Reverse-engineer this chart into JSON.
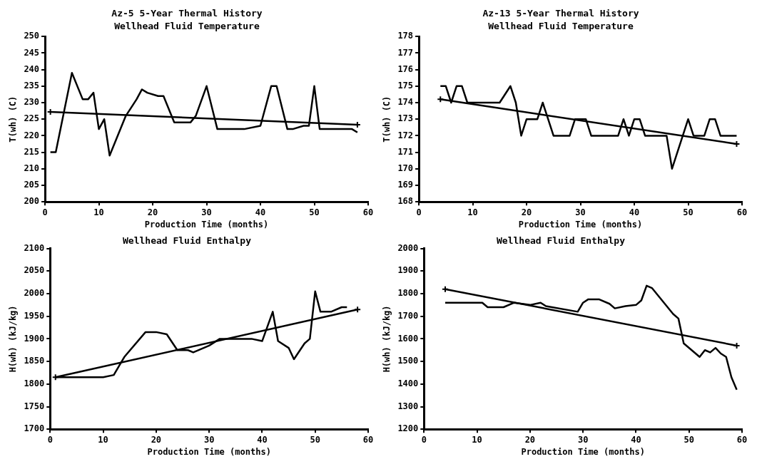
{
  "chart_data": [
    {
      "type": "line",
      "title": "Az-5 5-Year Thermal History",
      "subtitle": "Wellhead Fluid Temperature",
      "xlabel": "Production Time (months)",
      "ylabel": "T(wh) (C)",
      "xlim": [
        0,
        60
      ],
      "xticks": [
        0,
        10,
        20,
        30,
        40,
        50,
        60
      ],
      "ylim": [
        200,
        250
      ],
      "yticks": [
        200,
        205,
        210,
        215,
        220,
        225,
        230,
        235,
        240,
        245,
        250
      ],
      "grid": false,
      "legend": false,
      "series": [
        {
          "color": "#000000",
          "marker": "none",
          "x": [
            1,
            2,
            5,
            7,
            8,
            9,
            10,
            11,
            12,
            15,
            17,
            18,
            19,
            21,
            22,
            24,
            27,
            28,
            30,
            32,
            37,
            40,
            42,
            43,
            45,
            46,
            48,
            49,
            50,
            51,
            57,
            58
          ],
          "values": [
            215,
            215,
            239,
            231,
            231,
            233,
            222,
            225,
            214,
            226,
            231,
            234,
            233,
            232,
            232,
            224,
            224,
            226,
            235,
            222,
            222,
            223,
            235,
            235,
            222,
            222,
            223,
            223,
            235,
            222,
            222,
            221
          ]
        },
        {
          "color": "#000000",
          "marker": "cross",
          "x": [
            1,
            58
          ],
          "values": [
            227.2,
            223.3
          ]
        }
      ]
    },
    {
      "type": "line",
      "title": "Az-13 5-Year Thermal History",
      "subtitle": "Wellhead Fluid Temperature",
      "xlabel": "Production Time (months)",
      "ylabel": "T(wh) (C)",
      "xlim": [
        0,
        60
      ],
      "xticks": [
        0,
        10,
        20,
        30,
        40,
        50,
        60
      ],
      "ylim": [
        168,
        178
      ],
      "yticks": [
        168,
        169,
        170,
        171,
        172,
        173,
        174,
        175,
        176,
        177,
        178
      ],
      "grid": false,
      "legend": false,
      "series": [
        {
          "color": "#000000",
          "marker": "none",
          "x": [
            4,
            5,
            6,
            7,
            8,
            9,
            10,
            15,
            17,
            18,
            19,
            20,
            22,
            23,
            24,
            25,
            28,
            29,
            31,
            32,
            37,
            38,
            39,
            40,
            41,
            42,
            46,
            47,
            50,
            51,
            53,
            54,
            55,
            56,
            59
          ],
          "values": [
            175,
            175,
            174,
            175,
            175,
            174,
            174,
            174,
            175,
            174,
            172,
            173,
            173,
            174,
            173,
            172,
            172,
            173,
            173,
            172,
            172,
            173,
            172,
            173,
            173,
            172,
            172,
            170,
            173,
            172,
            172,
            173,
            173,
            172,
            172
          ]
        },
        {
          "color": "#000000",
          "marker": "cross",
          "x": [
            4,
            59
          ],
          "values": [
            174.2,
            171.5
          ]
        }
      ]
    },
    {
      "type": "line",
      "title": "Wellhead Fluid Enthalpy",
      "xlabel": "Production Time (months)",
      "ylabel": "H(wh) (kJ/kg)",
      "xlim": [
        0,
        60
      ],
      "xticks": [
        0,
        10,
        20,
        30,
        40,
        50,
        60
      ],
      "ylim": [
        1700,
        2100
      ],
      "yticks": [
        1700,
        1750,
        1800,
        1850,
        1900,
        1950,
        2000,
        2050,
        2100
      ],
      "grid": false,
      "legend": false,
      "series": [
        {
          "color": "#000000",
          "marker": "none",
          "x": [
            1,
            5,
            10,
            12,
            14,
            18,
            20,
            22,
            24,
            26,
            27,
            30,
            32,
            35,
            38,
            40,
            42,
            43,
            45,
            46,
            48,
            49,
            50,
            51,
            53,
            55,
            56
          ],
          "values": [
            1815,
            1815,
            1815,
            1820,
            1860,
            1915,
            1915,
            1910,
            1875,
            1875,
            1870,
            1885,
            1900,
            1900,
            1900,
            1895,
            1960,
            1895,
            1880,
            1855,
            1890,
            1900,
            2005,
            1960,
            1960,
            1970,
            1970
          ]
        },
        {
          "color": "#000000",
          "marker": "cross",
          "x": [
            1,
            58
          ],
          "values": [
            1815,
            1965
          ]
        }
      ]
    },
    {
      "type": "line",
      "title": "Wellhead Fluid Enthalpy",
      "xlabel": "Production Time (months)",
      "ylabel": "H(wh) (kJ/kg)",
      "xlim": [
        0,
        60
      ],
      "xticks": [
        0,
        10,
        20,
        30,
        40,
        50,
        60
      ],
      "ylim": [
        1200,
        2000
      ],
      "yticks": [
        1200,
        1300,
        1400,
        1500,
        1600,
        1700,
        1800,
        1900,
        2000
      ],
      "grid": false,
      "legend": false,
      "series": [
        {
          "color": "#000000",
          "marker": "none",
          "x": [
            4,
            11,
            12,
            15,
            17,
            20,
            22,
            23,
            29,
            30,
            31,
            33,
            35,
            36,
            38,
            40,
            41,
            42,
            43,
            47,
            48,
            49,
            52,
            53,
            54,
            55,
            56,
            57,
            58,
            59
          ],
          "values": [
            1760,
            1760,
            1740,
            1740,
            1760,
            1750,
            1760,
            1745,
            1720,
            1760,
            1775,
            1775,
            1755,
            1735,
            1745,
            1750,
            1770,
            1835,
            1825,
            1710,
            1690,
            1580,
            1520,
            1550,
            1540,
            1560,
            1535,
            1520,
            1430,
            1375
          ]
        },
        {
          "color": "#000000",
          "marker": "cross",
          "x": [
            4,
            59
          ],
          "values": [
            1820,
            1570
          ]
        }
      ]
    }
  ]
}
